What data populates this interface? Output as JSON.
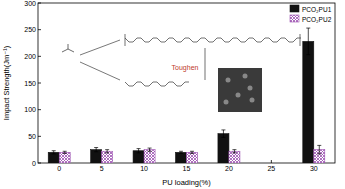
{
  "chart_data": {
    "type": "bar",
    "x_label": "PU loading(%)",
    "y_label": "Impact Strength(Jm⁻¹)",
    "annotation": "Toughen",
    "x": [
      0,
      5,
      10,
      15,
      20,
      30
    ],
    "xlim": [
      -2.5,
      32.5
    ],
    "xticks": [
      0,
      5,
      10,
      15,
      20,
      25,
      30
    ],
    "ylim": [
      0,
      300
    ],
    "yticks": [
      0,
      50,
      100,
      150,
      200,
      250,
      300
    ],
    "legend": "top-right",
    "series": [
      {
        "name": "PCO₂PU1",
        "color": "#111111",
        "values": [
          20,
          25,
          23,
          20,
          55,
          228
        ],
        "errors": [
          3,
          4,
          4,
          2,
          7,
          25
        ]
      },
      {
        "name": "PCO₂PU2",
        "color": "#9b4fb0",
        "values": [
          20,
          22,
          25,
          20,
          22,
          25
        ],
        "errors": [
          2,
          3,
          3,
          2,
          3,
          8
        ]
      }
    ]
  }
}
